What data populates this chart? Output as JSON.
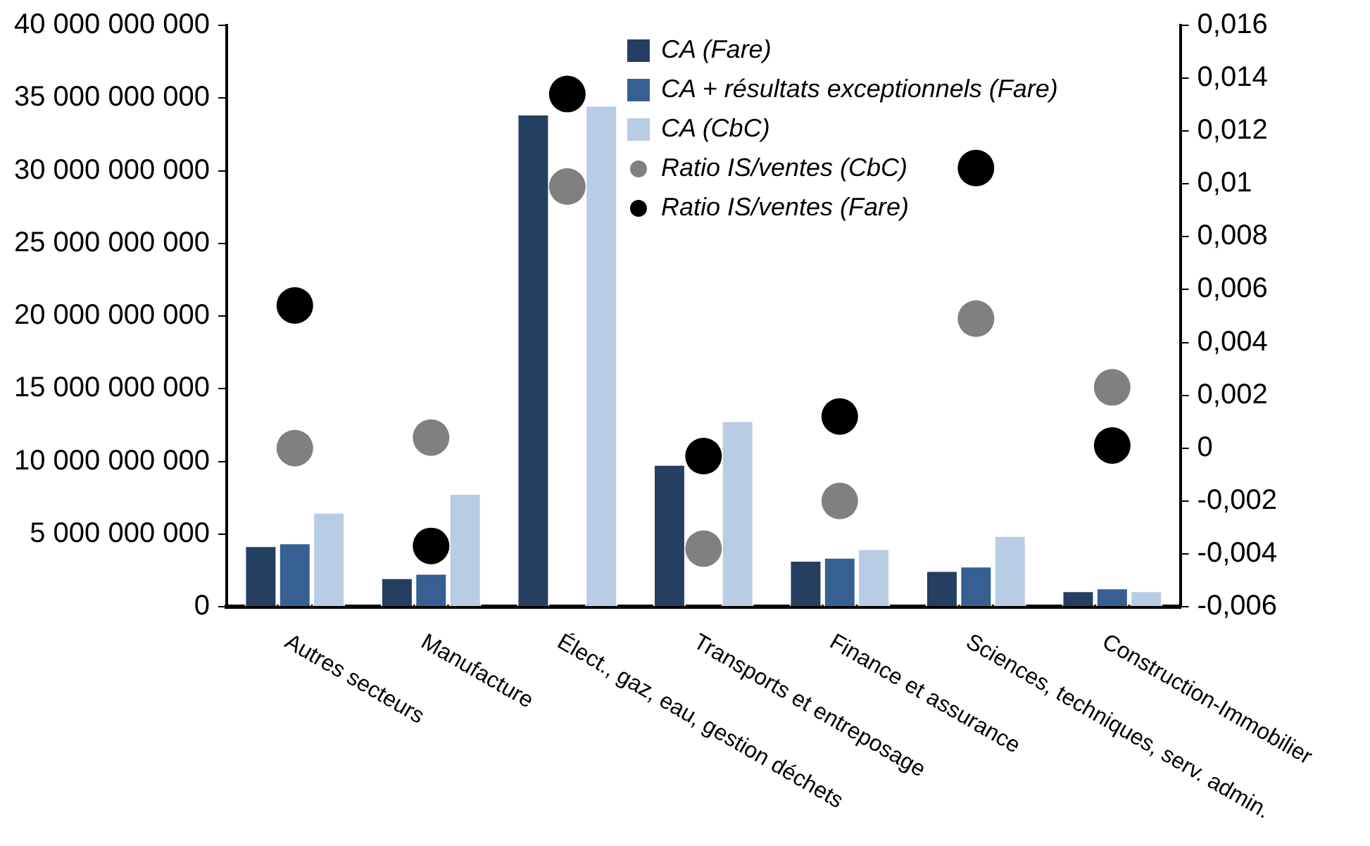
{
  "chart_data": {
    "type": "bar",
    "categories": [
      "Autres secteurs",
      "Manufacture",
      "Élect., gaz, eau, gestion déchets",
      "Transports et entreposage",
      "Finance et assurance",
      "Sciences, techniques, serv. admin.",
      "Construction-Immobilier"
    ],
    "series": [
      {
        "name": "CA (Fare)",
        "color": "#253f62",
        "values": [
          4200000000,
          2000000000,
          33900000000,
          9800000000,
          3200000000,
          2500000000,
          1100000000
        ]
      },
      {
        "name": "CA + résultats exceptionnels (Fare)",
        "color": "#366092",
        "values": [
          4400000000,
          2300000000,
          null,
          null,
          3400000000,
          2800000000,
          1300000000
        ]
      },
      {
        "name": "CA (CbC)",
        "color": "#b8cce4",
        "values": [
          6500000000,
          7800000000,
          34500000000,
          12800000000,
          4000000000,
          4900000000,
          1100000000
        ]
      },
      {
        "name": "Ratio IS/ventes (CbC)",
        "type": "scatter",
        "axis": "y2",
        "color": "#808080",
        "x": [
          "Autres secteurs",
          "Manufacture",
          "Élect., gaz, eau, gestion déchets",
          "Transports et entreposage",
          "Finance et assurance",
          "Sciences, techniques, serv. admin.",
          "Construction-Immobilier"
        ],
        "values": [
          0.0,
          0.0004,
          0.0099,
          -0.0038,
          -0.002,
          0.0049,
          0.0023
        ]
      },
      {
        "name": "Ratio IS/ventes (Fare)",
        "type": "scatter",
        "axis": "y2",
        "color": "#000000",
        "x": [
          "Autres secteurs",
          "Manufacture",
          "Élect., gaz, eau, gestion déchets",
          "Transports et entreposage",
          "Finance et assurance",
          "Sciences, techniques, serv. admin.",
          "Construction-Immobilier"
        ],
        "values": [
          0.0054,
          -0.0037,
          0.0134,
          -0.0003,
          0.0012,
          0.0106,
          0.0001
        ]
      }
    ],
    "ylim": [
      0,
      40000000000
    ],
    "yticks": [
      {
        "value": 0,
        "label": "0"
      },
      {
        "value": 5000000000,
        "label": "5 000 000 000"
      },
      {
        "value": 10000000000,
        "label": "10 000 000 000"
      },
      {
        "value": 15000000000,
        "label": "15 000 000 000"
      },
      {
        "value": 20000000000,
        "label": "20 000 000 000"
      },
      {
        "value": 25000000000,
        "label": "25 000 000 000"
      },
      {
        "value": 30000000000,
        "label": "30 000 000 000"
      },
      {
        "value": 35000000000,
        "label": "35 000 000 000"
      },
      {
        "value": 40000000000,
        "label": "40 000 000 000"
      }
    ],
    "y2lim": [
      -0.006,
      0.016
    ],
    "y2ticks": [
      {
        "value": -0.006,
        "label": "-0,006"
      },
      {
        "value": -0.004,
        "label": "-0,004"
      },
      {
        "value": -0.002,
        "label": "-0,002"
      },
      {
        "value": 0,
        "label": "0"
      },
      {
        "value": 0.002,
        "label": "0,002"
      },
      {
        "value": 0.004,
        "label": "0,004"
      },
      {
        "value": 0.006,
        "label": "0,006"
      },
      {
        "value": 0.008,
        "label": "0,008"
      },
      {
        "value": 0.01,
        "label": "0,01"
      },
      {
        "value": 0.012,
        "label": "0,012"
      },
      {
        "value": 0.014,
        "label": "0,014"
      },
      {
        "value": 0.016,
        "label": "0,016"
      }
    ],
    "grid": false,
    "legend": "top right",
    "marker": "circle"
  }
}
